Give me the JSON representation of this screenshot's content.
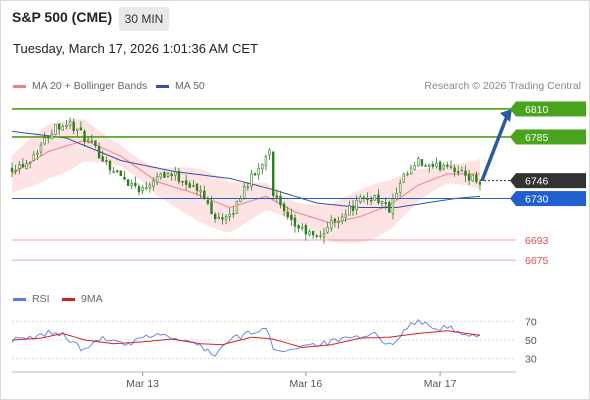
{
  "header": {
    "instrument": "S&P 500 (CME)",
    "timeframe": "30 MIN",
    "datetime": "Tuesday, March 17, 2026 1:01:36 AM CET"
  },
  "legend": {
    "bb_label": "MA 20 + Bollinger Bands",
    "ma50_label": "MA 50",
    "rsi_label": "RSI",
    "rsi_ma_label": "9MA",
    "credit": "Research © 2026 Trading Central"
  },
  "colors": {
    "bb_fill": "#fde3e3",
    "ma20": "#f08080",
    "ma50": "#3a4f9e",
    "candle": "#2e7d22",
    "resistance": "#4aa31c",
    "current": "#333333",
    "pivot": "#1f5fcf",
    "support": "#e34d4d",
    "rsi": "#5b7fe0",
    "rsi_ma": "#d62020",
    "arrow": "#2a5a9e"
  },
  "chart_data": [
    {
      "type": "candlestick",
      "title": "S&P 500 (CME)",
      "x_ticks": [
        "Mar 13",
        "Mar 16",
        "Mar 17"
      ],
      "x_tick_index": [
        36,
        81,
        118
      ],
      "n_bars": 130,
      "ylim": [
        6668,
        6818
      ],
      "anchors": [
        [
          0,
          6758
        ],
        [
          4,
          6762
        ],
        [
          8,
          6778
        ],
        [
          12,
          6795
        ],
        [
          16,
          6797
        ],
        [
          20,
          6784
        ],
        [
          24,
          6770
        ],
        [
          28,
          6755
        ],
        [
          32,
          6745
        ],
        [
          36,
          6738
        ],
        [
          40,
          6752
        ],
        [
          44,
          6752
        ],
        [
          48,
          6745
        ],
        [
          52,
          6735
        ],
        [
          56,
          6715
        ],
        [
          60,
          6712
        ],
        [
          64,
          6740
        ],
        [
          68,
          6756
        ],
        [
          71,
          6776
        ],
        [
          72,
          6735
        ],
        [
          76,
          6710
        ],
        [
          80,
          6702
        ],
        [
          84,
          6694
        ],
        [
          88,
          6708
        ],
        [
          92,
          6718
        ],
        [
          96,
          6728
        ],
        [
          100,
          6732
        ],
        [
          104,
          6720
        ],
        [
          108,
          6748
        ],
        [
          112,
          6762
        ],
        [
          116,
          6756
        ],
        [
          120,
          6762
        ],
        [
          124,
          6752
        ],
        [
          129,
          6746
        ]
      ],
      "ma20_anchors": [
        [
          0,
          6752
        ],
        [
          10,
          6772
        ],
        [
          20,
          6782
        ],
        [
          30,
          6768
        ],
        [
          40,
          6745
        ],
        [
          50,
          6735
        ],
        [
          60,
          6722
        ],
        [
          70,
          6732
        ],
        [
          78,
          6718
        ],
        [
          88,
          6708
        ],
        [
          96,
          6714
        ],
        [
          104,
          6724
        ],
        [
          112,
          6742
        ],
        [
          120,
          6752
        ],
        [
          129,
          6752
        ]
      ],
      "ma50_anchors": [
        [
          0,
          6790
        ],
        [
          15,
          6784
        ],
        [
          30,
          6764
        ],
        [
          45,
          6754
        ],
        [
          60,
          6748
        ],
        [
          72,
          6738
        ],
        [
          84,
          6726
        ],
        [
          96,
          6722
        ],
        [
          106,
          6722
        ],
        [
          114,
          6726
        ],
        [
          122,
          6730
        ],
        [
          129,
          6732
        ]
      ],
      "bb_width": 22,
      "levels": [
        {
          "value": 6810,
          "label": "6810",
          "kind": "resistance"
        },
        {
          "value": 6785,
          "label": "6785",
          "kind": "resistance"
        },
        {
          "value": 6746,
          "label": "6746",
          "kind": "current"
        },
        {
          "value": 6730,
          "label": "6730",
          "kind": "pivot"
        },
        {
          "value": 6693,
          "label": "6693",
          "kind": "support"
        },
        {
          "value": 6675,
          "label": "6675",
          "kind": "support"
        }
      ],
      "arrow": {
        "from_value": 6746,
        "to_value": 6810
      }
    },
    {
      "type": "line",
      "name": "RSI",
      "ylim": [
        20,
        80
      ],
      "y_ticks": [
        70,
        50,
        30
      ],
      "rsi_anchors": [
        [
          0,
          50
        ],
        [
          6,
          52
        ],
        [
          10,
          58
        ],
        [
          14,
          56
        ],
        [
          18,
          44
        ],
        [
          20,
          38
        ],
        [
          24,
          52
        ],
        [
          28,
          48
        ],
        [
          32,
          44
        ],
        [
          36,
          52
        ],
        [
          40,
          57
        ],
        [
          46,
          50
        ],
        [
          52,
          44
        ],
        [
          56,
          34
        ],
        [
          60,
          50
        ],
        [
          66,
          58
        ],
        [
          70,
          62
        ],
        [
          72,
          42
        ],
        [
          76,
          38
        ],
        [
          80,
          45
        ],
        [
          86,
          46
        ],
        [
          90,
          50
        ],
        [
          96,
          52
        ],
        [
          100,
          56
        ],
        [
          104,
          44
        ],
        [
          108,
          60
        ],
        [
          112,
          72
        ],
        [
          116,
          62
        ],
        [
          120,
          64
        ],
        [
          124,
          56
        ],
        [
          129,
          53
        ]
      ],
      "ma_anchors": [
        [
          0,
          50
        ],
        [
          8,
          52
        ],
        [
          14,
          57
        ],
        [
          20,
          50
        ],
        [
          28,
          46
        ],
        [
          36,
          48
        ],
        [
          44,
          51
        ],
        [
          52,
          46
        ],
        [
          58,
          45
        ],
        [
          66,
          53
        ],
        [
          72,
          51
        ],
        [
          80,
          42
        ],
        [
          88,
          45
        ],
        [
          96,
          52
        ],
        [
          104,
          53
        ],
        [
          112,
          57
        ],
        [
          120,
          60
        ],
        [
          129,
          55
        ]
      ]
    }
  ]
}
